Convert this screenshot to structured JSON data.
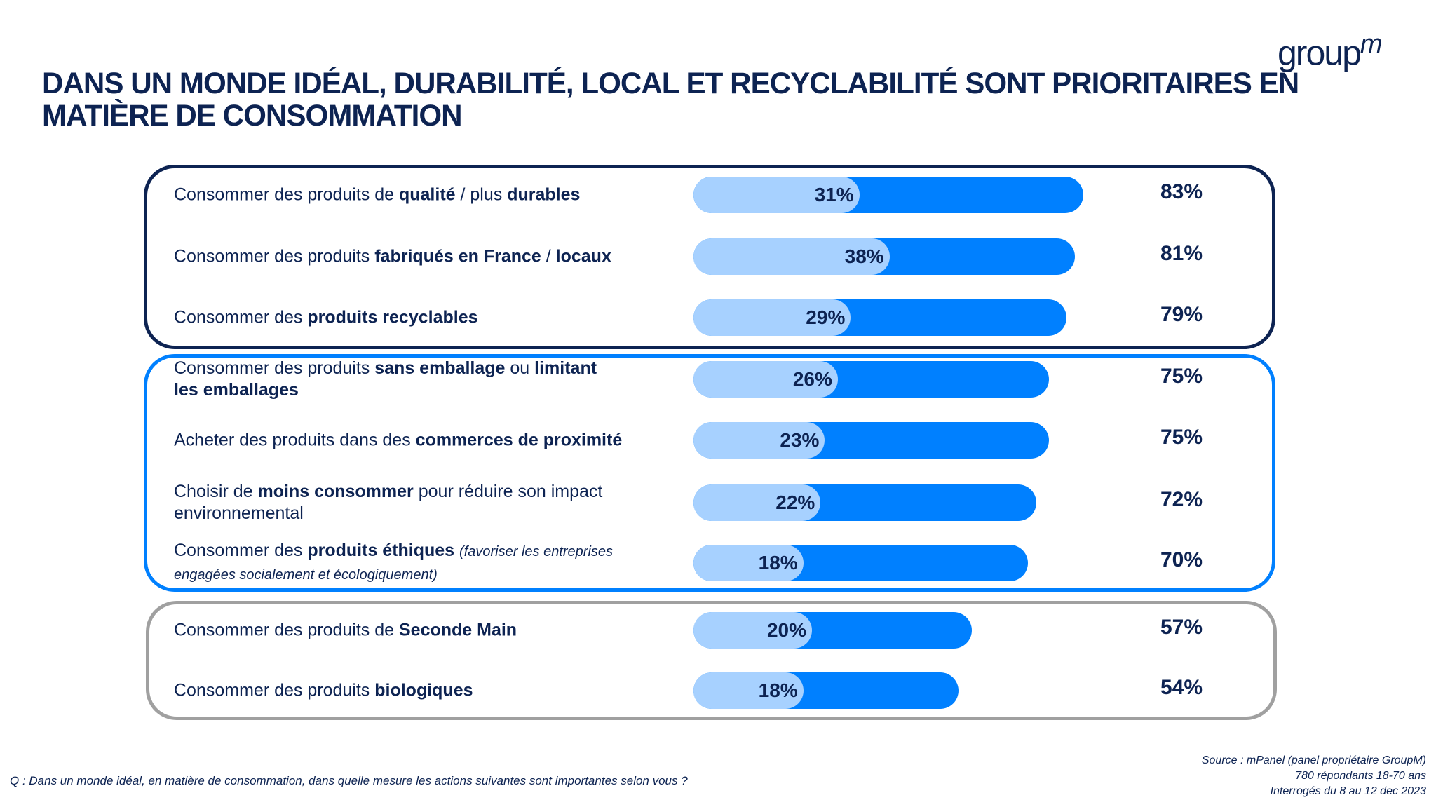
{
  "header": {
    "title": "DANS UN MONDE IDÉAL, DURABILITÉ, LOCAL ET RECYCLABILITÉ SONT PRIORITAIRES EN MATIÈRE DE CONSOMMATION",
    "logo": "groupm"
  },
  "colors": {
    "navy": "#0d2352",
    "total_bar": "#0080ff",
    "inner_bar": "#a7d1ff",
    "group1_border": "#0d2352",
    "group2_border": "#0080ff",
    "group3_border": "#a0a0a0"
  },
  "chart_data": {
    "type": "bar",
    "orientation": "horizontal",
    "categories": [
      "Consommer des produits de qualité / plus durables",
      "Consommer des produits fabriqués en France / locaux",
      "Consommer des produits recyclables",
      "Consommer des produits sans emballage ou limitant les emballages",
      "Acheter des produits dans des commerces de proximité",
      "Choisir de moins consommer pour réduire son impact environnemental",
      "Consommer des produits éthiques (favoriser les entreprises engagées socialement et écologiquement)",
      "Consommer des produits de Seconde Main",
      "Consommer des produits biologiques"
    ],
    "labels_html": [
      "Consommer des produits de <b>qualité</b> / plus <b>durables</b>",
      "Consommer des produits <b>fabriqués en France</b> / <b>locaux</b>",
      "Consommer des <b>produits recyclables</b>",
      "Consommer des produits <b>sans emballage</b> ou <b>limitant<br>les emballages</b>",
      "Acheter des produits dans des <b>commerces de proximité</b>",
      "Choisir de <b>moins consommer</b> pour réduire son impact<br>environnemental",
      "Consommer des <b>produits éthiques</b> <i>(favoriser les entreprises<br>engagées socialement et écologiquement)</i>",
      "Consommer des produits de <b>Seconde Main</b>",
      "Consommer des produits <b>biologiques</b>"
    ],
    "series": [
      {
        "values": [
          31,
          38,
          29,
          26,
          23,
          22,
          18,
          20,
          18
        ]
      },
      {
        "values": [
          83,
          81,
          79,
          75,
          75,
          72,
          70,
          57,
          54
        ]
      }
    ],
    "groups": [
      [
        0,
        1,
        2
      ],
      [
        3,
        4,
        5,
        6
      ],
      [
        7,
        8
      ]
    ],
    "value_format": "%"
  },
  "footer": {
    "question": "Q : Dans un monde idéal, en matière de consommation, dans quelle mesure les actions suivantes sont importantes selon vous ?",
    "source": "Source : mPanel (panel propriétaire GroupM)",
    "sample": "780 répondants 18-70 ans",
    "dates": "Interrogés du 8 au 12 dec 2023"
  }
}
